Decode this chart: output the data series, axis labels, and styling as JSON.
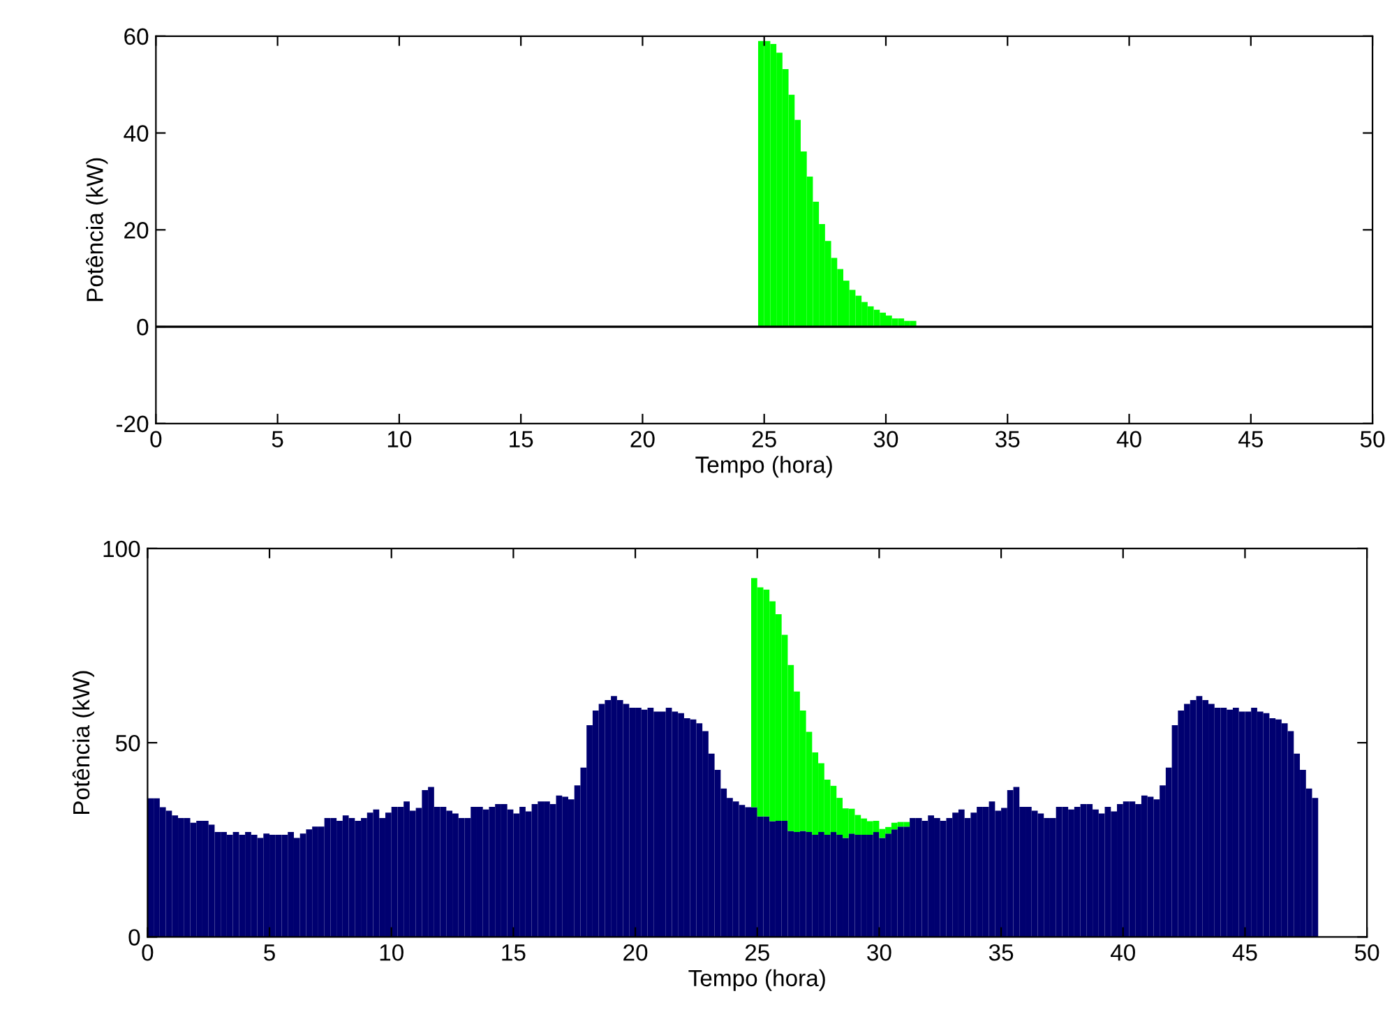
{
  "chart_data": [
    {
      "type": "bar",
      "xlabel": "Tempo (hora)",
      "ylabel": "Potência (kW)",
      "xlim": [
        0,
        50
      ],
      "ylim": [
        -20,
        60
      ],
      "xticks": [
        0,
        5,
        10,
        15,
        20,
        25,
        30,
        35,
        40,
        45,
        50
      ],
      "yticks": [
        -20,
        0,
        20,
        40,
        60
      ],
      "grid": false,
      "ref_lines": [
        {
          "axis": "y",
          "value": 0,
          "color": "#000000"
        }
      ],
      "series": [
        {
          "color": "#00ff00",
          "x": [
            24.875,
            25.125,
            25.375,
            25.625,
            25.875,
            26.125,
            26.375,
            26.625,
            26.875,
            27.125,
            27.375,
            27.625,
            27.875,
            28.125,
            28.375,
            28.625,
            28.875,
            29.125,
            29.375,
            29.625,
            29.875,
            30.125,
            30.375,
            30.625,
            30.875,
            31.125
          ],
          "values": [
            59,
            59,
            58.4,
            56.6,
            53.2,
            47.9,
            42.7,
            36.2,
            31,
            25.8,
            21.2,
            17.7,
            14.2,
            11.9,
            9.5,
            7.6,
            6.4,
            5.1,
            4.2,
            3.5,
            2.9,
            2.3,
            1.7,
            1.7,
            1.2,
            1.2
          ]
        }
      ]
    },
    {
      "type": "bar",
      "xlabel": "Tempo (hora)",
      "ylabel": "Potência (kW)",
      "xlim": [
        0,
        50
      ],
      "ylim": [
        0,
        100
      ],
      "xticks": [
        0,
        5,
        10,
        15,
        20,
        25,
        30,
        35,
        40,
        45,
        50
      ],
      "yticks": [
        0,
        50,
        100
      ],
      "grid": false,
      "stacked": true,
      "x": [
        0.125,
        0.375,
        0.625,
        0.875,
        1.125,
        1.375,
        1.625,
        1.875,
        2.125,
        2.375,
        2.625,
        2.875,
        3.125,
        3.375,
        3.625,
        3.875,
        4.125,
        4.375,
        4.625,
        4.875,
        5.125,
        5.375,
        5.625,
        5.875,
        6.125,
        6.375,
        6.625,
        6.875,
        7.125,
        7.375,
        7.625,
        7.875,
        8.125,
        8.375,
        8.625,
        8.875,
        9.125,
        9.375,
        9.625,
        9.875,
        10.125,
        10.375,
        10.625,
        10.875,
        11.125,
        11.375,
        11.625,
        11.875,
        12.125,
        12.375,
        12.625,
        12.875,
        13.125,
        13.375,
        13.625,
        13.875,
        14.125,
        14.375,
        14.625,
        14.875,
        15.125,
        15.375,
        15.625,
        15.875,
        16.125,
        16.375,
        16.625,
        16.875,
        17.125,
        17.375,
        17.625,
        17.875,
        18.125,
        18.375,
        18.625,
        18.875,
        19.125,
        19.375,
        19.625,
        19.875,
        20.125,
        20.375,
        20.625,
        20.875,
        21.125,
        21.375,
        21.625,
        21.875,
        22.125,
        22.375,
        22.625,
        22.875,
        23.125,
        23.375,
        23.625,
        23.875,
        24.125,
        24.375,
        24.625,
        24.875,
        25.125,
        25.375,
        25.625,
        25.875,
        26.125,
        26.375,
        26.625,
        26.875,
        27.125,
        27.375,
        27.625,
        27.875,
        28.125,
        28.375,
        28.625,
        28.875,
        29.125,
        29.375,
        29.625,
        29.875,
        30.125,
        30.375,
        30.625,
        30.875,
        31.125,
        31.375,
        31.625,
        31.875,
        32.125,
        32.375,
        32.625,
        32.875,
        33.125,
        33.375,
        33.625,
        33.875,
        34.125,
        34.375,
        34.625,
        34.875,
        35.125,
        35.375,
        35.625,
        35.875,
        36.125,
        36.375,
        36.625,
        36.875,
        37.125,
        37.375,
        37.625,
        37.875,
        38.125,
        38.375,
        38.625,
        38.875,
        39.125,
        39.375,
        39.625,
        39.875,
        40.125,
        40.375,
        40.625,
        40.875,
        41.125,
        41.375,
        41.625,
        41.875,
        42.125,
        42.375,
        42.625,
        42.875,
        43.125,
        43.375,
        43.625,
        43.875,
        44.125,
        44.375,
        44.625,
        44.875,
        45.125,
        45.375,
        45.625,
        45.875,
        46.125,
        46.375,
        46.625,
        46.875,
        47.125,
        47.375,
        47.625,
        47.875
      ],
      "series": [
        {
          "color": "#000070",
          "values": [
            35.7,
            35.7,
            33.4,
            32.5,
            31.3,
            30.6,
            30.6,
            29.4,
            29.9,
            29.9,
            28.9,
            27.0,
            27.0,
            26.3,
            27.0,
            26.3,
            27.0,
            26.3,
            25.5,
            26.6,
            26.3,
            26.3,
            26.3,
            27.0,
            25.5,
            26.6,
            27.7,
            28.4,
            28.4,
            30.6,
            30.6,
            29.9,
            31.3,
            30.6,
            29.9,
            30.6,
            32.0,
            32.8,
            30.6,
            32.0,
            33.5,
            33.5,
            34.9,
            32.5,
            33.2,
            37.8,
            38.6,
            33.5,
            33.5,
            32.5,
            31.8,
            30.6,
            30.6,
            33.5,
            33.5,
            32.8,
            33.5,
            34.2,
            34.2,
            32.8,
            31.8,
            33.5,
            32.3,
            34.2,
            34.9,
            34.9,
            34.2,
            36.4,
            36.1,
            35.4,
            39.0,
            43.6,
            54.5,
            58.3,
            60.0,
            61.0,
            62.0,
            61.0,
            60.0,
            59.0,
            59.0,
            58.5,
            59.0,
            58.0,
            58.0,
            59.0,
            58.0,
            57.6,
            56.3,
            56.0,
            55.0,
            53.0,
            47.2,
            43.0,
            38.2,
            35.8,
            34.9,
            34.0,
            33.4,
            33.4,
            31.0,
            31.0,
            29.8,
            29.9,
            29.9,
            27.3,
            27.0,
            27.3,
            27.0,
            26.3,
            27.0,
            26.3,
            27.0,
            26.3,
            25.5,
            26.6,
            26.3,
            26.3,
            26.3,
            27.0,
            25.5,
            26.6,
            27.7,
            28.4,
            28.4,
            30.6,
            30.6,
            29.9,
            31.3,
            30.6,
            29.9,
            30.6,
            32.0,
            32.8,
            30.6,
            32.0,
            33.5,
            33.5,
            34.9,
            32.5,
            33.2,
            37.8,
            38.6,
            33.5,
            33.5,
            32.5,
            31.8,
            30.6,
            30.6,
            33.5,
            33.5,
            32.8,
            33.5,
            34.2,
            34.2,
            32.8,
            31.8,
            33.5,
            32.3,
            34.2,
            34.9,
            34.9,
            34.2,
            36.4,
            36.1,
            35.4,
            39.0,
            43.6,
            54.5,
            58.3,
            60.0,
            61.0,
            62.0,
            61.0,
            60.0,
            59.0,
            59.0,
            58.5,
            59.0,
            58.0,
            58.0,
            59.0,
            58.0,
            57.6,
            56.3,
            56.0,
            55.0,
            53.0,
            47.2,
            43.0,
            38.2,
            35.8
          ]
        },
        {
          "color": "#00ff00",
          "values": [
            null,
            null,
            null,
            null,
            null,
            null,
            null,
            null,
            null,
            null,
            null,
            null,
            null,
            null,
            null,
            null,
            null,
            null,
            null,
            null,
            null,
            null,
            null,
            null,
            null,
            null,
            null,
            null,
            null,
            null,
            null,
            null,
            null,
            null,
            null,
            null,
            null,
            null,
            null,
            null,
            null,
            null,
            null,
            null,
            null,
            null,
            null,
            null,
            null,
            null,
            null,
            null,
            null,
            null,
            null,
            null,
            null,
            null,
            null,
            null,
            null,
            null,
            null,
            null,
            null,
            null,
            null,
            null,
            null,
            null,
            null,
            null,
            null,
            null,
            null,
            null,
            null,
            null,
            null,
            null,
            null,
            null,
            null,
            null,
            null,
            null,
            null,
            null,
            null,
            null,
            null,
            null,
            null,
            null,
            null,
            null,
            null,
            null,
            null,
            59,
            59,
            58.4,
            56.6,
            53.2,
            47.9,
            42.7,
            36.2,
            31,
            25.8,
            21.2,
            17.7,
            14.2,
            11.9,
            9.5,
            7.6,
            6.4,
            5.1,
            4.2,
            3.5,
            2.9,
            2.3,
            1.7,
            1.7,
            1.2,
            1.2,
            null,
            null,
            null,
            null,
            null,
            null,
            null,
            null,
            null,
            null,
            null,
            null,
            null,
            null,
            null,
            null,
            null,
            null,
            null,
            null,
            null,
            null,
            null,
            null,
            null,
            null,
            null,
            null,
            null,
            null,
            null,
            null,
            null,
            null,
            null,
            null,
            null,
            null,
            null,
            null,
            null,
            null,
            null,
            null,
            null,
            null,
            null,
            null,
            null,
            null,
            null,
            null,
            null,
            null,
            null,
            null,
            null,
            null,
            null,
            null,
            null,
            null,
            null,
            null,
            null,
            null,
            null
          ]
        }
      ]
    }
  ]
}
